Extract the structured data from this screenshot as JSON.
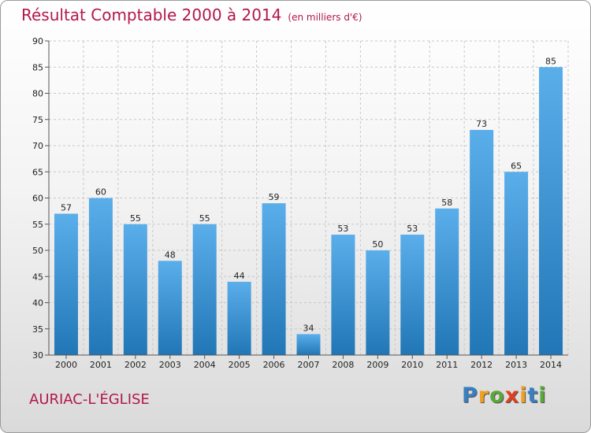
{
  "header": {
    "title": "Résultat Comptable 2000 à 2014",
    "subtitle": "(en milliers d'€)"
  },
  "footer": {
    "place": "AURIAC-L'ÉGLISE",
    "logo": [
      "P",
      "r",
      "o",
      "x",
      "i",
      "t",
      "i"
    ]
  },
  "colors": {
    "bar_top": "#5aaeea",
    "bar_bottom": "#2176b6",
    "title": "#b2184a",
    "logo": [
      "#3a7fc2",
      "#f0a020",
      "#5aa83a",
      "#e04020",
      "#f0a020",
      "#3a7fc2",
      "#5aa83a"
    ]
  },
  "chart_data": {
    "type": "bar",
    "title": "Résultat Comptable 2000 à 2014",
    "ylabel": "",
    "xlabel": "",
    "categories": [
      "2000",
      "2001",
      "2002",
      "2003",
      "2004",
      "2005",
      "2006",
      "2007",
      "2008",
      "2009",
      "2010",
      "2011",
      "2012",
      "2013",
      "2014"
    ],
    "values": [
      57,
      60,
      55,
      48,
      55,
      44,
      59,
      34,
      53,
      50,
      53,
      58,
      73,
      65,
      85
    ],
    "ylim": [
      30,
      90
    ],
    "yticks": [
      30,
      35,
      40,
      45,
      50,
      55,
      60,
      65,
      70,
      75,
      80,
      85,
      90
    ],
    "grid": true,
    "data_labels": true
  }
}
